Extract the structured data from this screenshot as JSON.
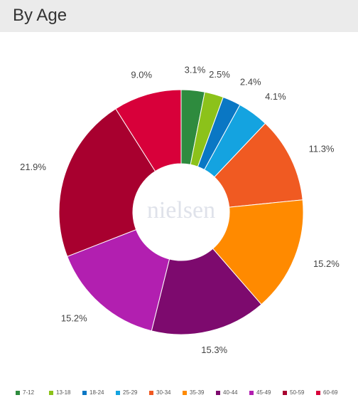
{
  "chart_data": {
    "type": "donut",
    "title": "By Age",
    "watermark": "nielsen",
    "categories": [
      "7-12",
      "13-18",
      "18-24",
      "25-29",
      "30-34",
      "35-39",
      "40-44",
      "45-49",
      "50-59",
      "60-69"
    ],
    "values": [
      3.1,
      2.5,
      2.4,
      4.1,
      11.3,
      15.2,
      15.3,
      15.2,
      21.9,
      9.0
    ],
    "value_labels": [
      "3.1%",
      "2.5%",
      "2.4%",
      "4.1%",
      "11.3%",
      "15.2%",
      "15.3%",
      "15.2%",
      "21.9%",
      "9.0%"
    ],
    "colors": [
      "#2e8b3e",
      "#8cc21a",
      "#0a77c4",
      "#14a3e0",
      "#f05a22",
      "#ff8a00",
      "#7d0a6e",
      "#b21fb0",
      "#a8002f",
      "#d8003a"
    ],
    "legend": "bottom"
  }
}
